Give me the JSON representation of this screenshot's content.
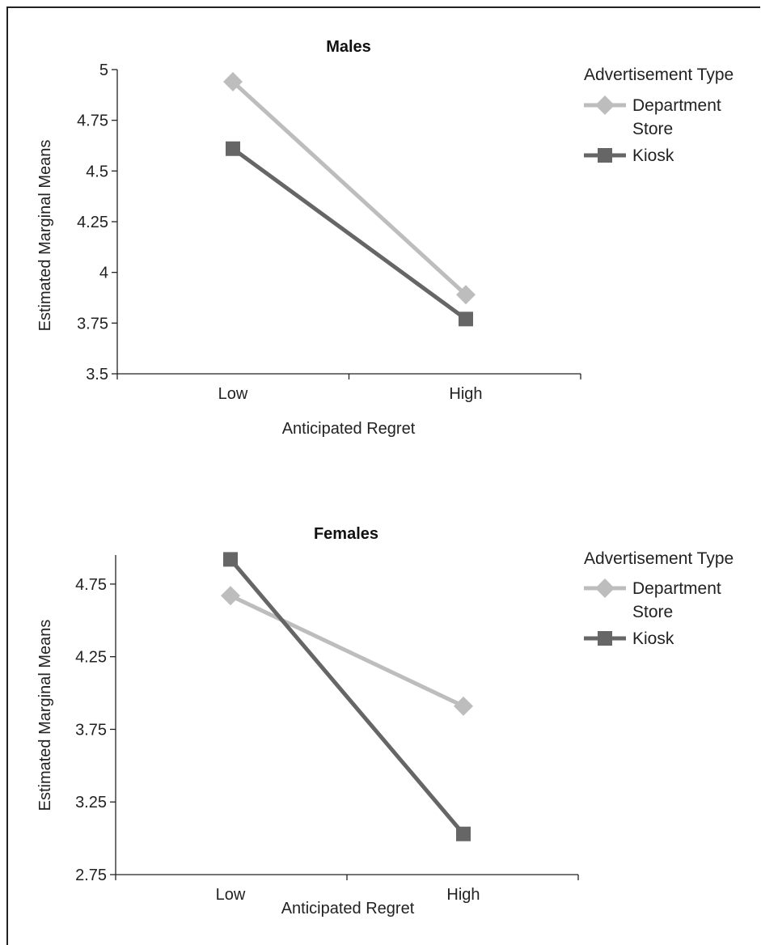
{
  "chart_data": [
    {
      "type": "line",
      "title": "Males",
      "xlabel": "Anticipated Regret",
      "ylabel": "Estimated Marginal Means",
      "categories": [
        "Low",
        "High"
      ],
      "ylim": [
        3.5,
        5.0
      ],
      "yticks": [
        "3.5",
        "3.75",
        "4",
        "4.25",
        "4.5",
        "4.75",
        "5"
      ],
      "legend_title": "Advertisement Type",
      "series": [
        {
          "name": "Department Store",
          "name_lines": [
            "Department",
            "Store"
          ],
          "values": [
            4.94,
            3.89
          ],
          "color": "#bdbdbd",
          "marker": "diamond"
        },
        {
          "name": "Kiosk",
          "name_lines": [
            "Kiosk"
          ],
          "values": [
            4.61,
            3.77
          ],
          "color": "#666666",
          "marker": "square"
        }
      ]
    },
    {
      "type": "line",
      "title": "Females",
      "xlabel": "Anticipated Regret",
      "ylabel": "Estimated Marginal Means",
      "categories": [
        "Low",
        "High"
      ],
      "ylim": [
        2.75,
        4.95
      ],
      "yticks": [
        "2.75",
        "3.25",
        "3.75",
        "4.25",
        "4.75"
      ],
      "legend_title": "Advertisement Type",
      "series": [
        {
          "name": "Department Store",
          "name_lines": [
            "Department",
            "Store"
          ],
          "values": [
            4.67,
            3.91
          ],
          "color": "#bdbdbd",
          "marker": "diamond"
        },
        {
          "name": "Kiosk",
          "name_lines": [
            "Kiosk"
          ],
          "values": [
            4.92,
            3.03
          ],
          "color": "#666666",
          "marker": "square"
        }
      ]
    }
  ]
}
